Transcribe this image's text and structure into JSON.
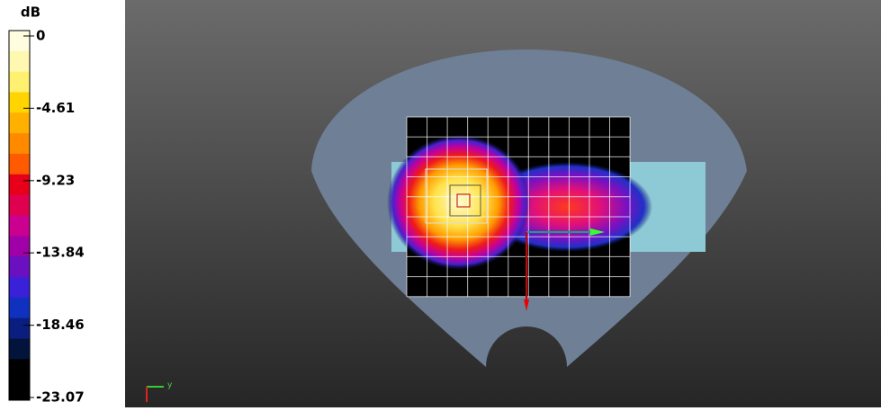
{
  "colorbar": {
    "unit": "dB",
    "ticks": [
      0,
      -4.61,
      -9.23,
      -13.84,
      -18.46,
      -23.07
    ]
  },
  "axis_triad": {
    "label": "y"
  }
}
